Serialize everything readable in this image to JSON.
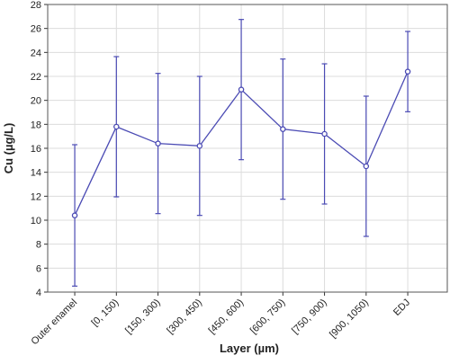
{
  "chart_data": {
    "type": "line",
    "x_label": "Layer (µm)",
    "y_label": "Cu (µg/L)",
    "categories": [
      "Outer enamel",
      "[0, 150)",
      "[150, 300)",
      "[300, 450)",
      "[450, 600)",
      "[600, 750)",
      "[750, 900)",
      "[900, 1050)",
      "EDJ"
    ],
    "values": [
      10.4,
      17.8,
      16.4,
      16.2,
      20.9,
      17.6,
      17.2,
      14.5,
      22.4
    ],
    "errors": [
      5.9,
      5.85,
      5.85,
      5.8,
      5.85,
      5.85,
      5.85,
      5.85,
      3.35
    ],
    "color": "#4b4bb4",
    "ylim": [
      4,
      28
    ],
    "yticks": [
      4,
      6,
      8,
      10,
      12,
      14,
      16,
      18,
      20,
      22,
      24,
      26,
      28
    ],
    "grid": true
  }
}
